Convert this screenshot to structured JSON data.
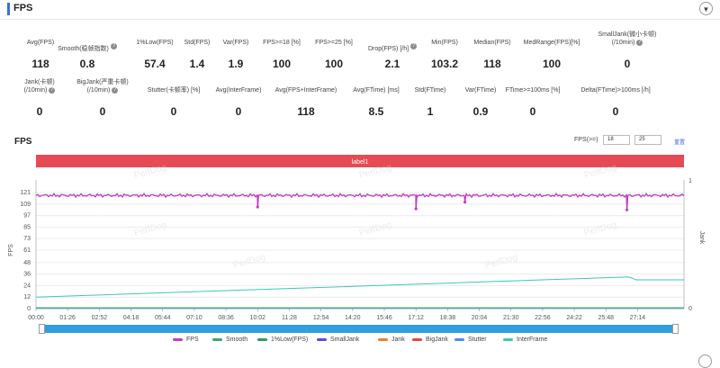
{
  "header": {
    "title": "FPS",
    "collapse_icon": "chevron-down-icon"
  },
  "metrics": [
    {
      "label": "Avg(FPS)",
      "value": "118",
      "help": false
    },
    {
      "label": "Smooth(稳帧指数)",
      "value": "0.8",
      "help": true
    },
    {
      "label": "1%Low(FPS)",
      "value": "57.4",
      "help": false
    },
    {
      "label": "Std(FPS)",
      "value": "1.4",
      "help": false
    },
    {
      "label": "Var(FPS)",
      "value": "1.9",
      "help": false
    },
    {
      "label": "FPS>=18 [%]",
      "value": "100",
      "help": false
    },
    {
      "label": "FPS>=25 [%]",
      "value": "100",
      "help": false
    },
    {
      "label": "Drop(FPS) [/h]",
      "value": "2.1",
      "help": true
    },
    {
      "label": "Min(FPS)",
      "value": "103.2",
      "help": false
    },
    {
      "label": "Median(FPS)",
      "value": "118",
      "help": false
    },
    {
      "label": "MedRange(FPS)[%]",
      "value": "100",
      "help": false
    },
    {
      "label": "SmallJank(微小卡顿)",
      "label2": "(/10min)",
      "value": "0",
      "help": true
    },
    {
      "label": "Jank(卡顿)",
      "label2": "(/10min)",
      "value": "0",
      "help": true
    },
    {
      "label": "BigJank(严重卡顿)",
      "label2": "(/10min)",
      "value": "0",
      "help": true
    },
    {
      "label": "Stutter(卡顿率) [%]",
      "value": "0",
      "help": false
    },
    {
      "label": "Avg(InterFrame)",
      "value": "0",
      "help": false
    },
    {
      "label": "Avg(FPS+InterFrame)",
      "value": "118",
      "help": false
    },
    {
      "label": "Avg(FTime) [ms]",
      "value": "8.5",
      "help": false
    },
    {
      "label": "Std(FTime)",
      "value": "1",
      "help": false
    },
    {
      "label": "Var(FTime)",
      "value": "0.9",
      "help": false
    },
    {
      "label": "FTime>=100ms [%]",
      "value": "0",
      "help": false
    },
    {
      "label": "Delta(FTime)>100ms [/h]",
      "value": "0",
      "help": false
    }
  ],
  "chart_panel": {
    "title": "FPS",
    "threshold_label": "FPS(>=)",
    "threshold_1": "18",
    "threshold_2": "25",
    "reset_label": "重置",
    "range_label": "label1",
    "watermark": "PerfDog"
  },
  "chart_data": {
    "type": "line",
    "title": "",
    "ylabel": "FPS",
    "y2label": "Jank",
    "ylim": [
      0,
      121
    ],
    "yticks": [
      "121",
      "109",
      "97",
      "85",
      "73",
      "61",
      "48",
      "36",
      "24",
      "12",
      "0"
    ],
    "y2ticks": [
      "1",
      "0"
    ],
    "xticks": [
      "00:00",
      "01:26",
      "02:52",
      "04:18",
      "05:44",
      "07:10",
      "08:36",
      "10:02",
      "11:28",
      "12:54",
      "14:20",
      "15:46",
      "17:12",
      "18:38",
      "20:04",
      "21:30",
      "22:56",
      "24:22",
      "25:48",
      "27:14"
    ],
    "grid": true,
    "series": [
      {
        "name": "FPS",
        "color": "#c03fc0",
        "approx_value": 118,
        "dips": [
          {
            "t": "10:02",
            "value": 106
          },
          {
            "t": "17:12",
            "value": 104
          },
          {
            "t": "19:25",
            "value": 111
          },
          {
            "t": "26:45",
            "value": 103
          }
        ]
      },
      {
        "name": "Smooth",
        "color": "#3aaa6b"
      },
      {
        "name": "1%Low(FPS)",
        "color": "#2f9c5e"
      },
      {
        "name": "SmallJank",
        "color": "#5a4fd0"
      },
      {
        "name": "Jank",
        "color": "#f07f2f"
      },
      {
        "name": "BigJank",
        "color": "#e04a3a"
      },
      {
        "name": "Stutter",
        "color": "#4a90e2"
      },
      {
        "name": "InterFrame",
        "color": "#3fc7b5",
        "points": [
          {
            "t": "00:00",
            "value": 12
          },
          {
            "t": "26:50",
            "value": 33
          },
          {
            "t": "27:10",
            "value": 30
          },
          {
            "t": "29:20",
            "value": 30
          }
        ]
      }
    ]
  }
}
